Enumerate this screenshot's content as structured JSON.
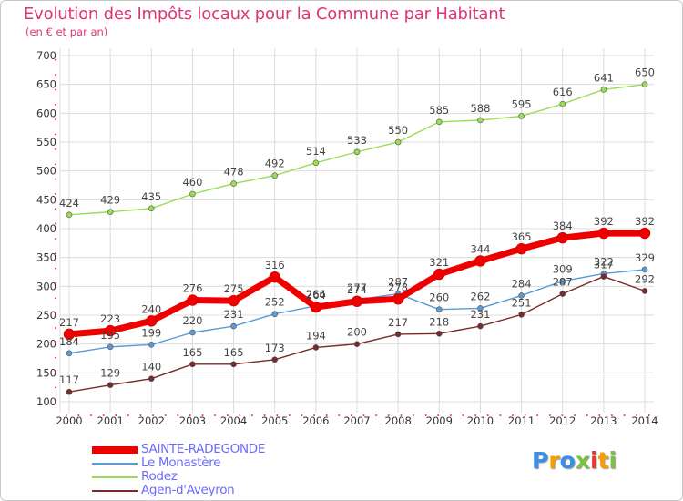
{
  "chart_data": {
    "type": "line",
    "title": "Evolution des Impôts locaux pour la Commune par Habitant",
    "subtitle": "(en € et par an)",
    "xlabel": "",
    "ylabel": "",
    "ylim": [
      100,
      700
    ],
    "yticks": [
      100,
      150,
      200,
      250,
      300,
      350,
      400,
      450,
      500,
      550,
      600,
      650,
      700
    ],
    "categories": [
      "2000",
      "2001",
      "2002",
      "2003",
      "2004",
      "2005",
      "2006",
      "2007",
      "2008",
      "2009",
      "2010",
      "2011",
      "2012",
      "2013",
      "2014"
    ],
    "grid": true,
    "series": [
      {
        "name": "SAINTE-RADEGONDE",
        "color": "#ee0000",
        "values": [
          217,
          223,
          240,
          276,
          275,
          316,
          264,
          274,
          278,
          321,
          344,
          365,
          384,
          392,
          392
        ]
      },
      {
        "name": "Le Monastère",
        "color": "#5b9bd5",
        "values": [
          184,
          195,
          199,
          220,
          231,
          252,
          266,
          277,
          287,
          260,
          262,
          284,
          309,
          322,
          329
        ]
      },
      {
        "name": "Rodez",
        "color": "#99dd55",
        "values": [
          424,
          429,
          435,
          460,
          478,
          492,
          514,
          533,
          550,
          585,
          588,
          595,
          616,
          641,
          650
        ]
      },
      {
        "name": "Agen-d'Aveyron",
        "color": "#7a2a2a",
        "values": [
          117,
          129,
          140,
          165,
          165,
          173,
          194,
          200,
          217,
          218,
          231,
          251,
          287,
          317,
          292
        ]
      }
    ]
  },
  "logo": {
    "text": "Proxiti",
    "colors": [
      "#3a8ee6",
      "#f5a000",
      "#3a8ee6",
      "#7cc242",
      "#e53935",
      "#f5a000",
      "#7cc242"
    ]
  }
}
